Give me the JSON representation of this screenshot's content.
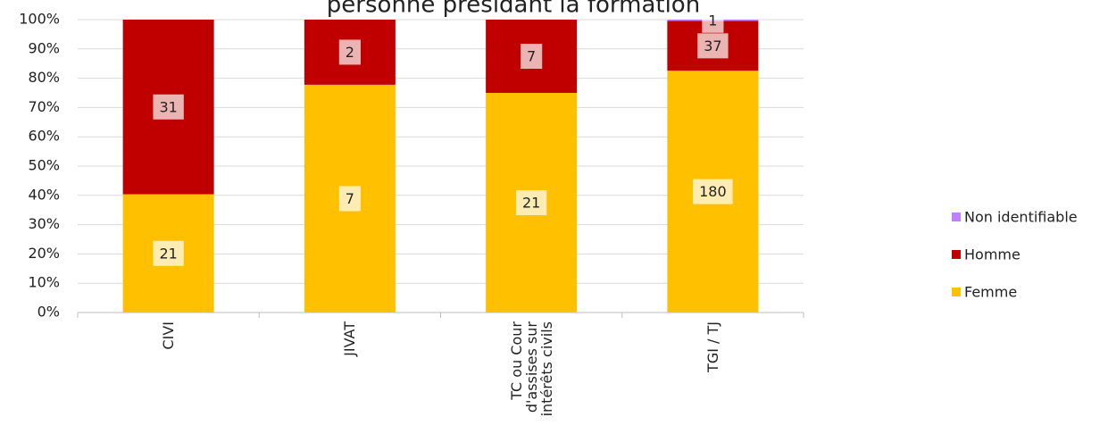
{
  "chart_data": {
    "type": "bar",
    "stack": "percent",
    "title": "personne présidant la formation",
    "categories": [
      "CIVI",
      "JIVAT",
      "TC ou Cour d'assises sur intérêts civils",
      "TGI / TJ"
    ],
    "series": [
      {
        "name": "Femme",
        "color": "#ffc000",
        "values": [
          21,
          7,
          21,
          180
        ]
      },
      {
        "name": "Homme",
        "color": "#c00000",
        "values": [
          31,
          2,
          7,
          37
        ]
      },
      {
        "name": "Non identifiable",
        "color": "#bf80ff",
        "values": [
          null,
          null,
          null,
          1
        ]
      }
    ],
    "ylim": [
      0,
      100
    ],
    "yticks": [
      {
        "value": 0,
        "label": "0%"
      },
      {
        "value": 10,
        "label": "10%"
      },
      {
        "value": 20,
        "label": "20%"
      },
      {
        "value": 30,
        "label": "30%"
      },
      {
        "value": 40,
        "label": "40%"
      },
      {
        "value": 50,
        "label": "50%"
      },
      {
        "value": 60,
        "label": "60%"
      },
      {
        "value": 70,
        "label": "70%"
      },
      {
        "value": 80,
        "label": "80%"
      },
      {
        "value": 90,
        "label": "90%"
      },
      {
        "value": 100,
        "label": "100%"
      }
    ],
    "grid": true,
    "legend": "right"
  }
}
